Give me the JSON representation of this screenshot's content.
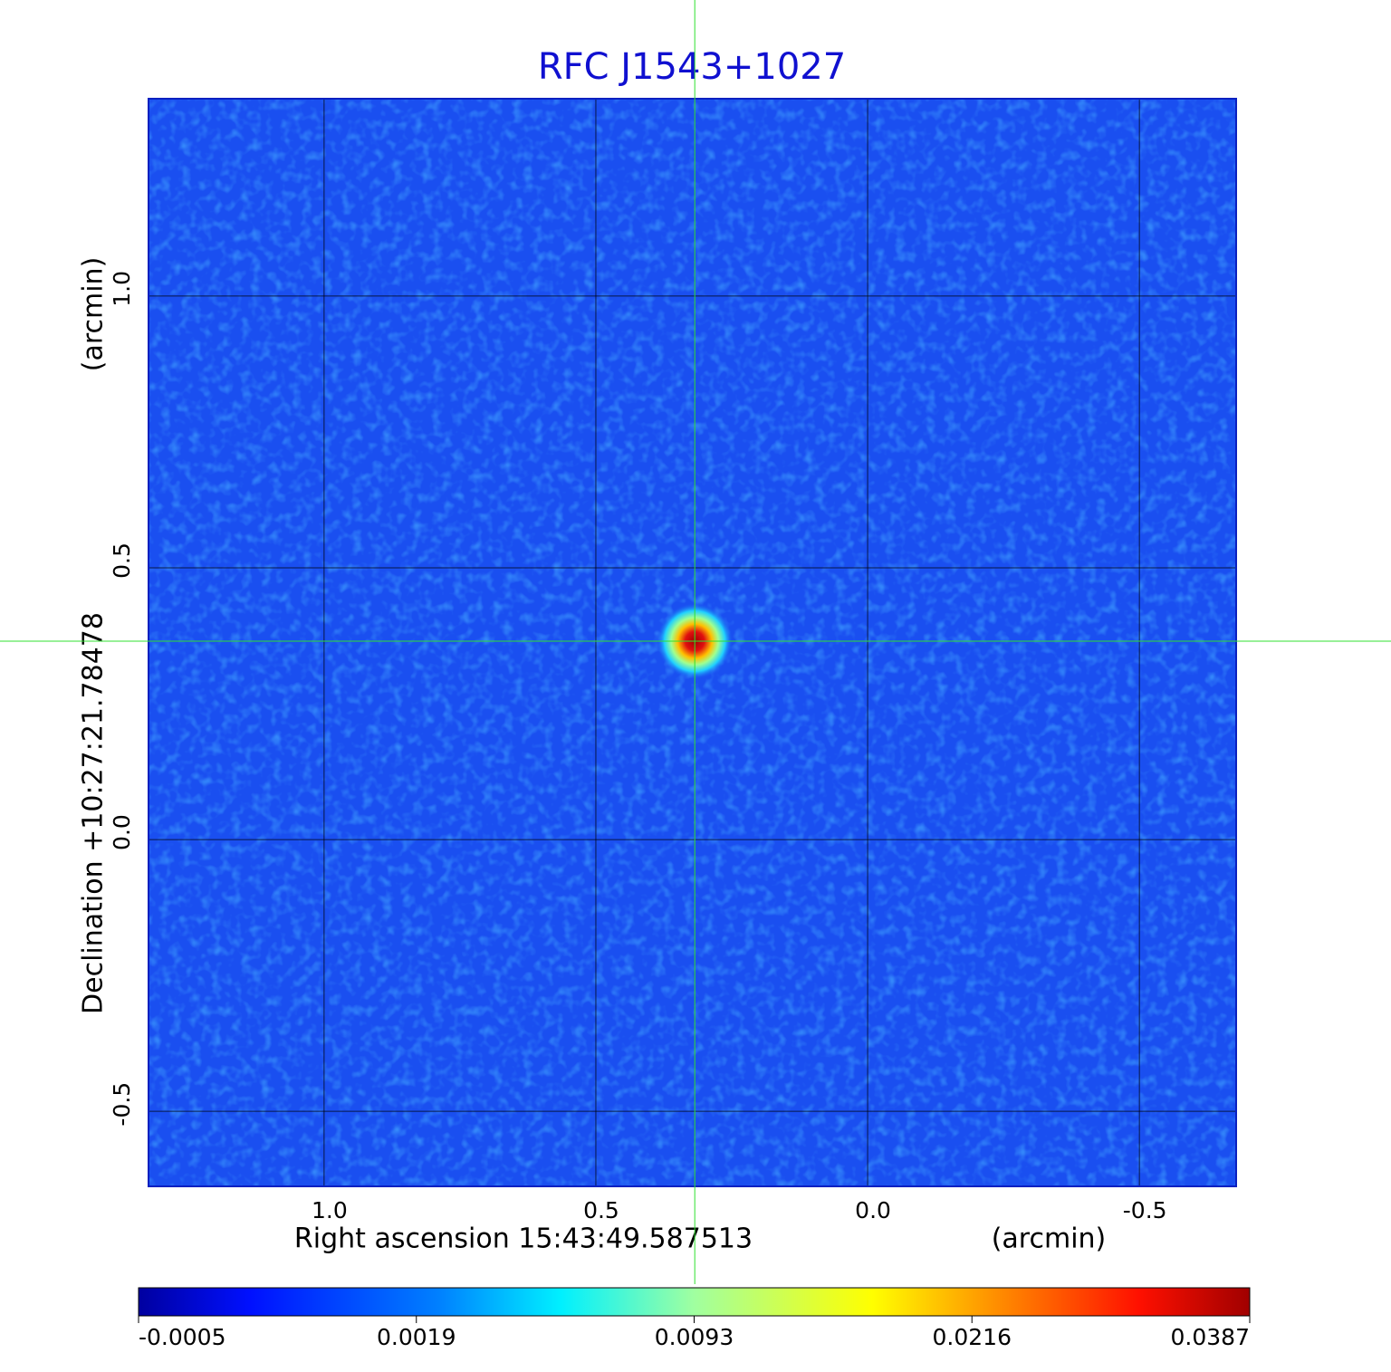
{
  "chart_data": {
    "type": "image",
    "title": "RFC J1543+1027",
    "x_label": "Right ascension  15:43:49.587513",
    "x_unit": "(arcmin)",
    "y_label": "Declination  +10:27:21.78478",
    "y_unit": "(arcmin)",
    "xlim": [
      1.323,
      -0.678
    ],
    "ylim": [
      -0.638,
      1.363
    ],
    "xticks": [
      {
        "value": 1,
        "label": "1.0"
      },
      0.5,
      {
        "value": 0,
        "label": "0.0"
      },
      -0.5
    ],
    "yticks": [
      -0.5,
      {
        "value": 0,
        "label": "0.0"
      },
      0.5,
      {
        "value": 1,
        "label": "1.0"
      }
    ],
    "grid": true,
    "source": {
      "x": 0.318,
      "y": 0.365
    },
    "colorbar_ticks": [
      -0.0005,
      0.0019,
      0.0093,
      0.0216,
      0.0387
    ]
  }
}
